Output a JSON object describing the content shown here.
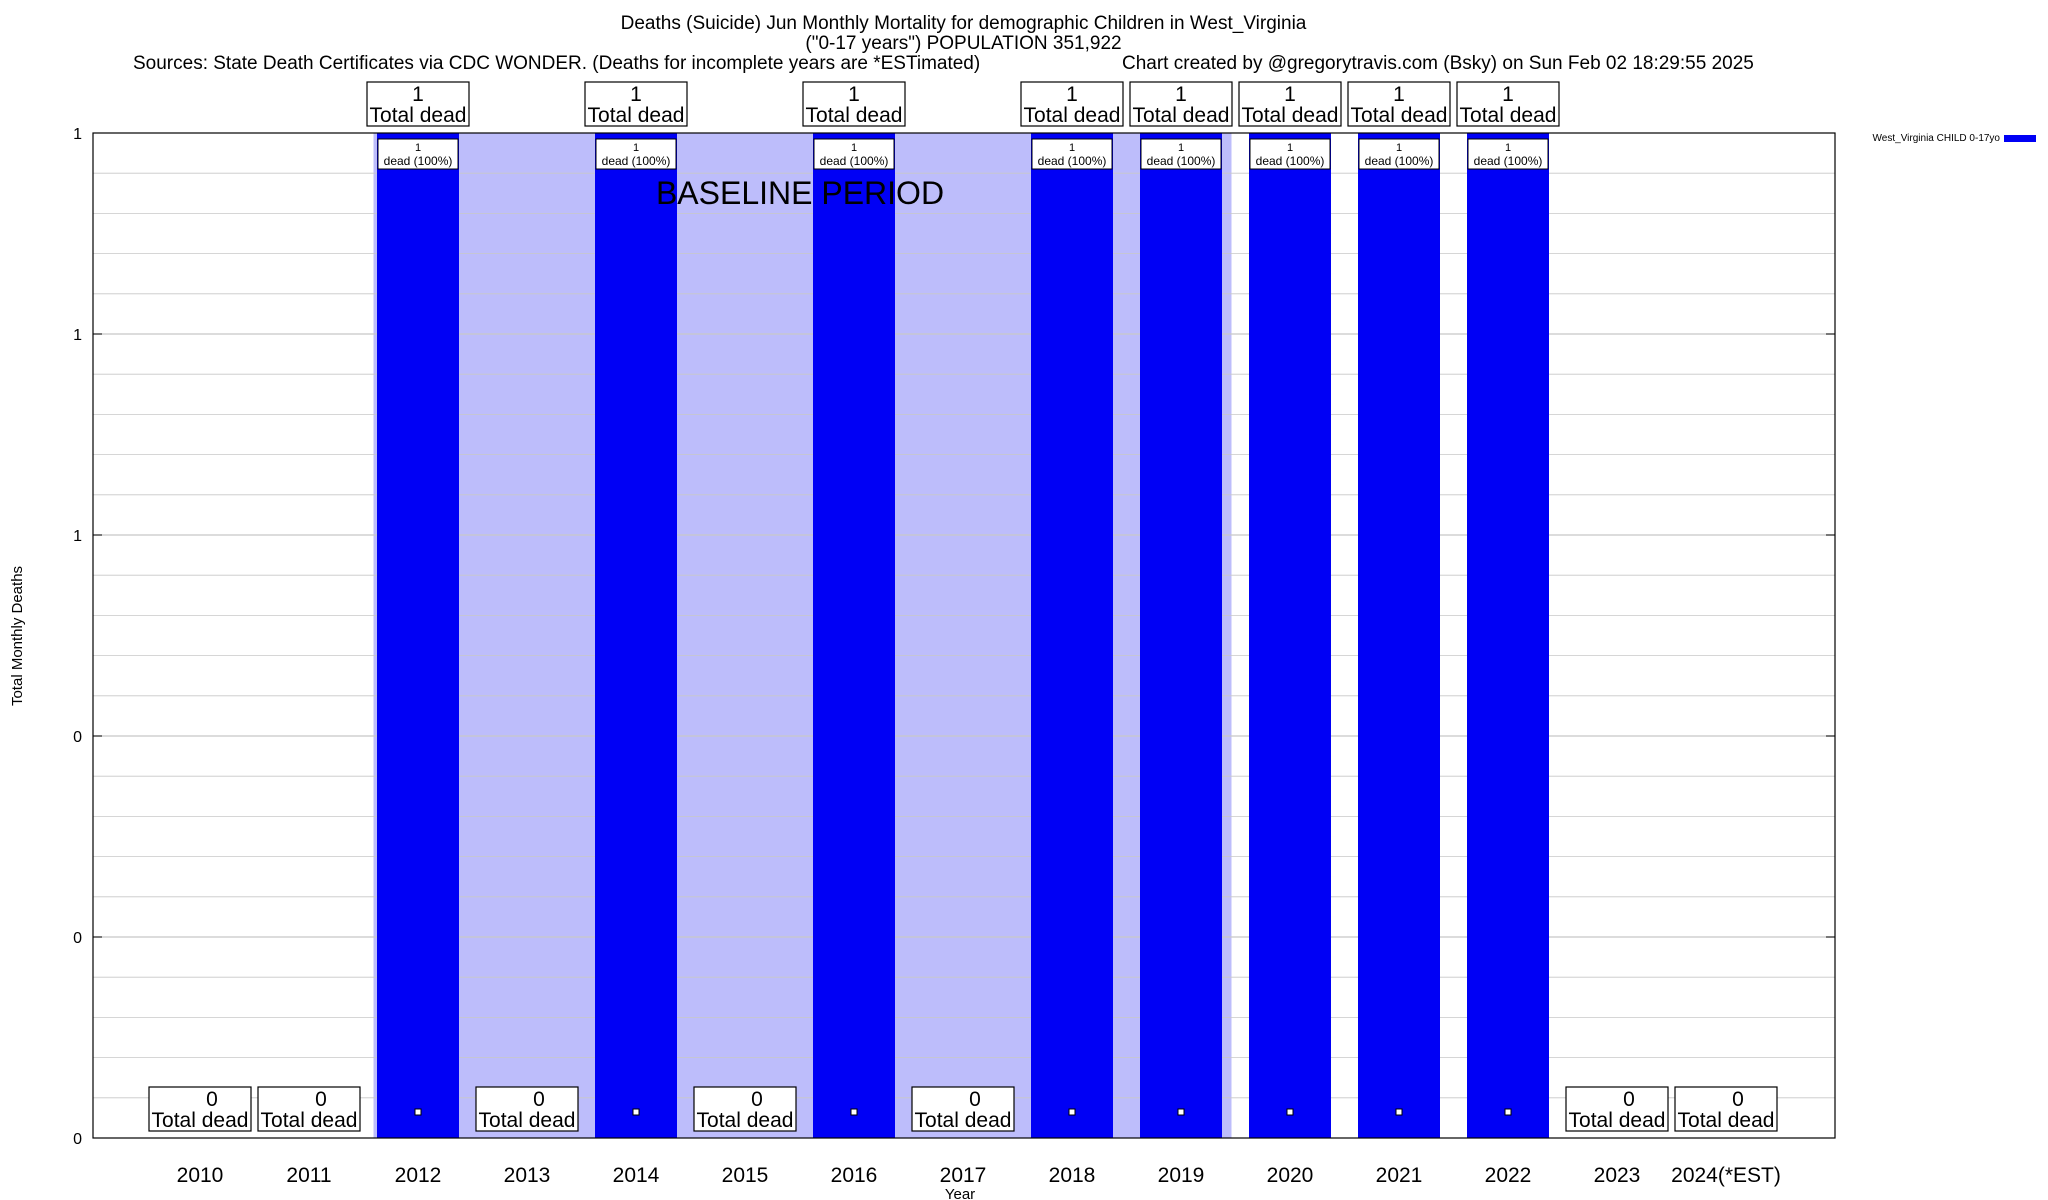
{
  "header": {
    "title_line1": "Deaths (Suicide) Jun Monthly Mortality for demographic Children in West_Virginia",
    "title_line2": "(\"0-17 years\") POPULATION 351,922",
    "sources": "Sources: State Death Certificates via CDC WONDER. (Deaths for incomplete years are *ESTimated)",
    "credit": "Chart created by @gregorytravis.com (Bsky) on Sun Feb 02 18:29:55 2025"
  },
  "colors": {
    "bar": "#0000f5",
    "baseline": "#bdbdfb",
    "grid": "#c8c8c8",
    "axis": "#000000"
  },
  "chart_data": {
    "type": "bar",
    "title": "Deaths (Suicide) Jun Monthly Mortality for demographic Children in West_Virginia",
    "subtitle": "(\"0-17 years\") POPULATION 351,922",
    "xlabel": "Year",
    "ylabel": "Total Monthly Deaths",
    "categories": [
      "2010",
      "2011",
      "2012",
      "2013",
      "2014",
      "2015",
      "2016",
      "2017",
      "2018",
      "2019",
      "2020",
      "2021",
      "2022",
      "2023",
      "2024(*EST)"
    ],
    "series": [
      {
        "name": "West_Virginia CHILD 0-17yo",
        "values": [
          0,
          0,
          1,
          0,
          1,
          0,
          1,
          0,
          1,
          1,
          1,
          1,
          1,
          0,
          0
        ]
      }
    ],
    "ylim": [
      0,
      1
    ],
    "yticks": [
      {
        "value": 0,
        "label": "0"
      },
      {
        "value": 0.2,
        "label": "0"
      },
      {
        "value": 0.4,
        "label": "0"
      },
      {
        "value": 0.6,
        "label": "1"
      },
      {
        "value": 0.8,
        "label": "1"
      },
      {
        "value": 1,
        "label": "1"
      }
    ],
    "total_label": "Total dead",
    "inner_labels": [
      "dead (100%)"
    ],
    "baseline_period": {
      "label": "BASELINE PERIOD",
      "start": "2012",
      "end": "2019"
    },
    "grid": true,
    "legend": "top-right, outside plot"
  }
}
